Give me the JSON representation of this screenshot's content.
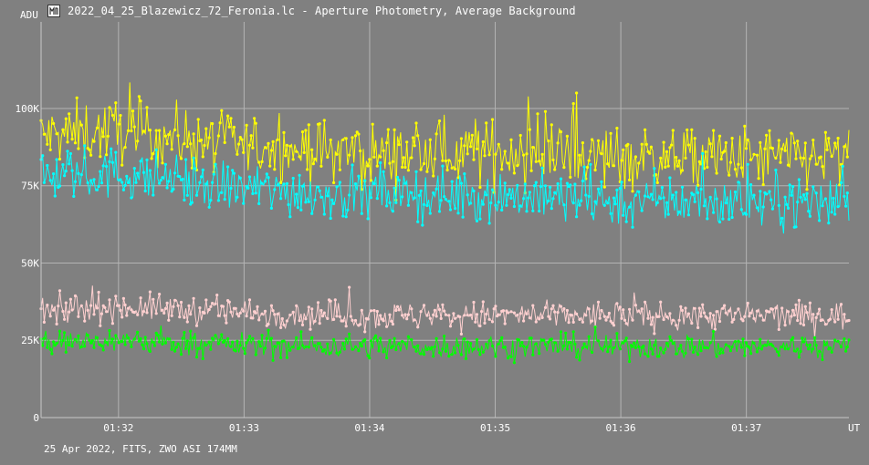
{
  "window": {
    "title": "2022_04_25_Blazewicz_72_Feronia.lc - Aperture Photometry, Average Background",
    "icon": "lightcurve-app-icon"
  },
  "footer": {
    "info": "25 Apr 2022, FITS, ZWO ASI 174MM"
  },
  "chart_data": {
    "type": "line",
    "title": "2022_04_25_Blazewicz_72_Feronia.lc - Aperture Photometry, Average Background",
    "ylabel": "ADU",
    "xlabel": "UT",
    "ylim": [
      0,
      128000
    ],
    "xlim": [
      "01:31:23",
      "01:37:49"
    ],
    "x_ticks": [
      "01:32",
      "01:33",
      "01:34",
      "01:35",
      "01:36",
      "01:37"
    ],
    "y_ticks": [
      {
        "value": 0,
        "label": "0"
      },
      {
        "value": 25000,
        "label": "25K"
      },
      {
        "value": 50000,
        "label": "50K"
      },
      {
        "value": 75000,
        "label": "75K"
      },
      {
        "value": 100000,
        "label": "100K"
      }
    ],
    "grid": true,
    "markers": true,
    "noise": "high scatter, point-to-point",
    "series": [
      {
        "color": "#ffff00",
        "mean_trend": [
          [
            "01:31:23",
            91000
          ],
          [
            "01:32:00",
            93000
          ],
          [
            "01:33:00",
            88000
          ],
          [
            "01:34:00",
            85000
          ],
          [
            "01:35:00",
            86000
          ],
          [
            "01:36:00",
            84000
          ],
          [
            "01:37:00",
            84000
          ],
          [
            "01:37:49",
            84000
          ]
        ]
      },
      {
        "color": "#00ffff",
        "mean_trend": [
          [
            "01:31:23",
            78000
          ],
          [
            "01:32:00",
            79000
          ],
          [
            "01:33:00",
            74000
          ],
          [
            "01:34:00",
            72000
          ],
          [
            "01:35:00",
            72000
          ],
          [
            "01:36:00",
            70000
          ],
          [
            "01:37:00",
            70000
          ],
          [
            "01:37:49",
            70000
          ]
        ]
      },
      {
        "color": "#ffd0d0",
        "mean_trend": [
          [
            "01:31:23",
            34000
          ],
          [
            "01:32:00",
            36000
          ],
          [
            "01:33:00",
            34000
          ],
          [
            "01:34:00",
            33000
          ],
          [
            "01:35:00",
            33000
          ],
          [
            "01:36:00",
            33000
          ],
          [
            "01:37:00",
            33000
          ],
          [
            "01:37:49",
            33000
          ]
        ]
      },
      {
        "color": "#00ff00",
        "mean_trend": [
          [
            "01:31:23",
            24000
          ],
          [
            "01:32:00",
            25000
          ],
          [
            "01:33:00",
            23500
          ],
          [
            "01:34:00",
            23000
          ],
          [
            "01:35:00",
            23000
          ],
          [
            "01:36:00",
            23000
          ],
          [
            "01:37:00",
            23000
          ],
          [
            "01:37:49",
            23000
          ]
        ]
      }
    ]
  }
}
